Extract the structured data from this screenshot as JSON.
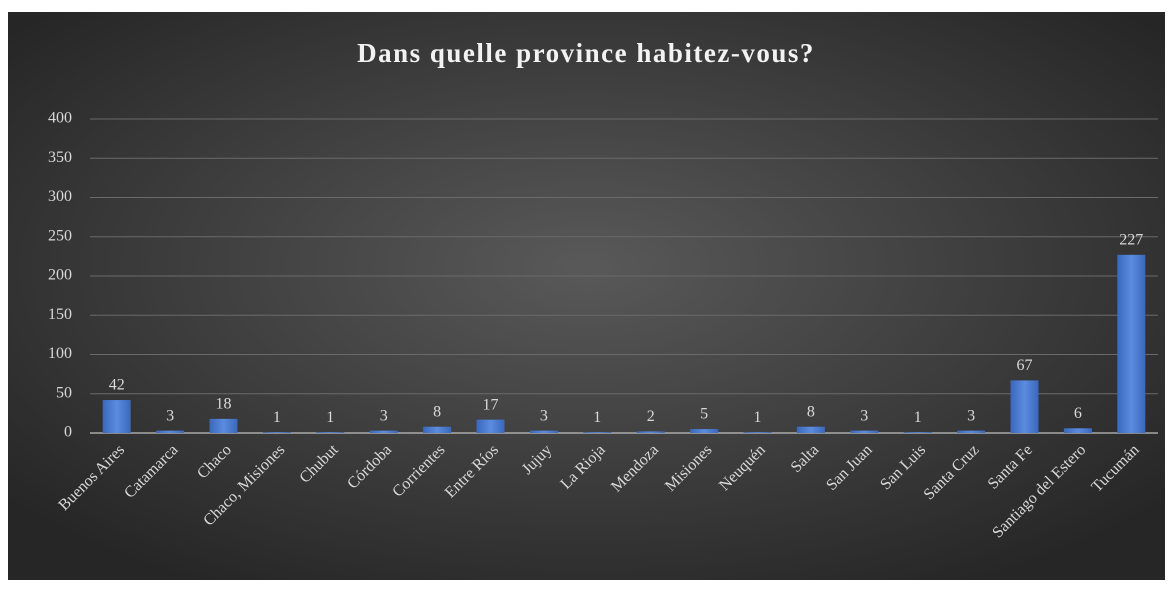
{
  "chart_data": {
    "type": "bar",
    "title": "Dans quelle province habitez-vous?",
    "categories": [
      "Buenos Aires",
      "Catamarca",
      "Chaco",
      "Chaco, Misiones",
      "Chubut",
      "Córdoba",
      "Corrientes",
      "Entre Ríos",
      "Jujuy",
      "La Rioja",
      "Mendoza",
      "Misiones",
      "Neuquén",
      "Salta",
      "San Juan",
      "San Luis",
      "Santa Cruz",
      "Santa Fe",
      "Santiago del Estero",
      "Tucumán"
    ],
    "values": [
      42,
      3,
      18,
      1,
      1,
      3,
      8,
      17,
      3,
      1,
      2,
      5,
      1,
      8,
      3,
      1,
      3,
      67,
      6,
      227
    ],
    "color": "#4a7bd0",
    "ylim": [
      0,
      400
    ],
    "yticks": [
      0,
      50,
      100,
      150,
      200,
      250,
      300,
      350,
      400
    ],
    "grid": true
  }
}
